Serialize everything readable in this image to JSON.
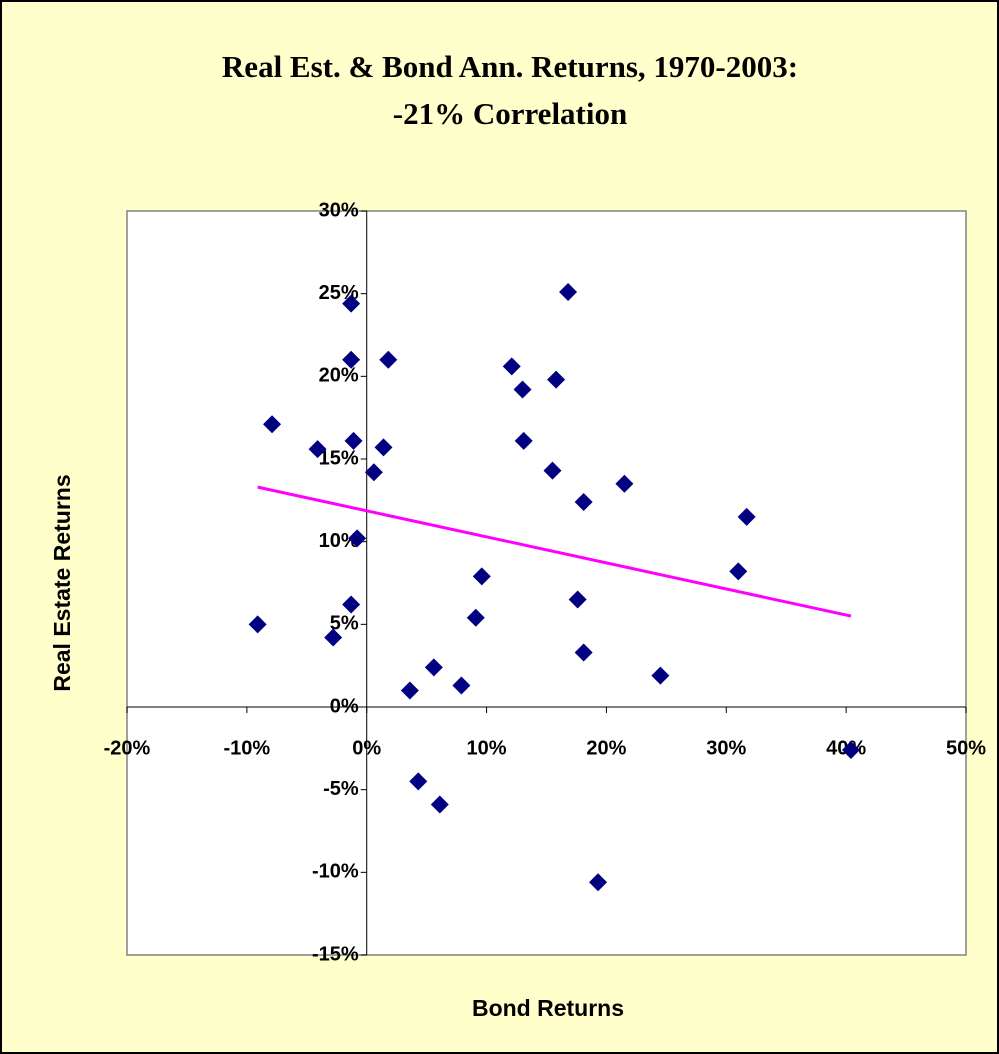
{
  "chart_data": {
    "type": "scatter",
    "title": [
      "Real Est. & Bond Ann. Returns, 1970-2003:",
      "-21% Correlation"
    ],
    "x_label": "Bond Returns",
    "y_label": "Real Estate Returns",
    "color": "#000080",
    "x": [
      -9.1,
      -7.9,
      -4.1,
      -2.8,
      -1.3,
      -1.3,
      -1.1,
      -1.3,
      -0.8,
      0.6,
      1.4,
      1.8,
      3.6,
      4.3,
      5.6,
      6.1,
      7.9,
      9.1,
      9.6,
      12.1,
      13.0,
      13.1,
      15.5,
      15.8,
      16.8,
      17.6,
      18.1,
      18.1,
      19.3,
      21.5,
      24.5,
      31.0,
      31.7,
      40.4
    ],
    "values": [
      5.0,
      17.1,
      15.6,
      4.2,
      24.4,
      21.0,
      16.1,
      6.2,
      10.2,
      14.2,
      15.7,
      21.0,
      1.0,
      -4.5,
      2.4,
      -5.9,
      1.3,
      5.4,
      7.9,
      20.6,
      19.2,
      16.1,
      14.3,
      19.8,
      25.1,
      6.5,
      12.4,
      3.3,
      -10.6,
      13.5,
      1.9,
      8.2,
      11.5,
      -2.6
    ],
    "trendline": {
      "color": "#ff00ff",
      "x": [
        -9.1,
        40.4
      ],
      "values": [
        13.3,
        5.5
      ]
    },
    "xlim": [
      -20,
      50
    ],
    "xticks": [
      {
        "value": -20,
        "label": "-20%"
      },
      {
        "value": -10,
        "label": "-10%"
      },
      {
        "value": 0,
        "label": "0%"
      },
      {
        "value": 10,
        "label": "10%"
      },
      {
        "value": 20,
        "label": "20%"
      },
      {
        "value": 30,
        "label": "30%"
      },
      {
        "value": 40,
        "label": "40%"
      },
      {
        "value": 50,
        "label": "50%"
      }
    ],
    "ylim": [
      -15,
      30
    ],
    "yticks": [
      {
        "value": -15,
        "label": "-15%"
      },
      {
        "value": -10,
        "label": "-10%"
      },
      {
        "value": -5,
        "label": "-5%"
      },
      {
        "value": 0,
        "label": "0%"
      },
      {
        "value": 5,
        "label": "5%"
      },
      {
        "value": 10,
        "label": "10%"
      },
      {
        "value": 15,
        "label": "15%"
      },
      {
        "value": 20,
        "label": "20%"
      },
      {
        "value": 25,
        "label": "25%"
      },
      {
        "value": 30,
        "label": "30%"
      }
    ]
  }
}
